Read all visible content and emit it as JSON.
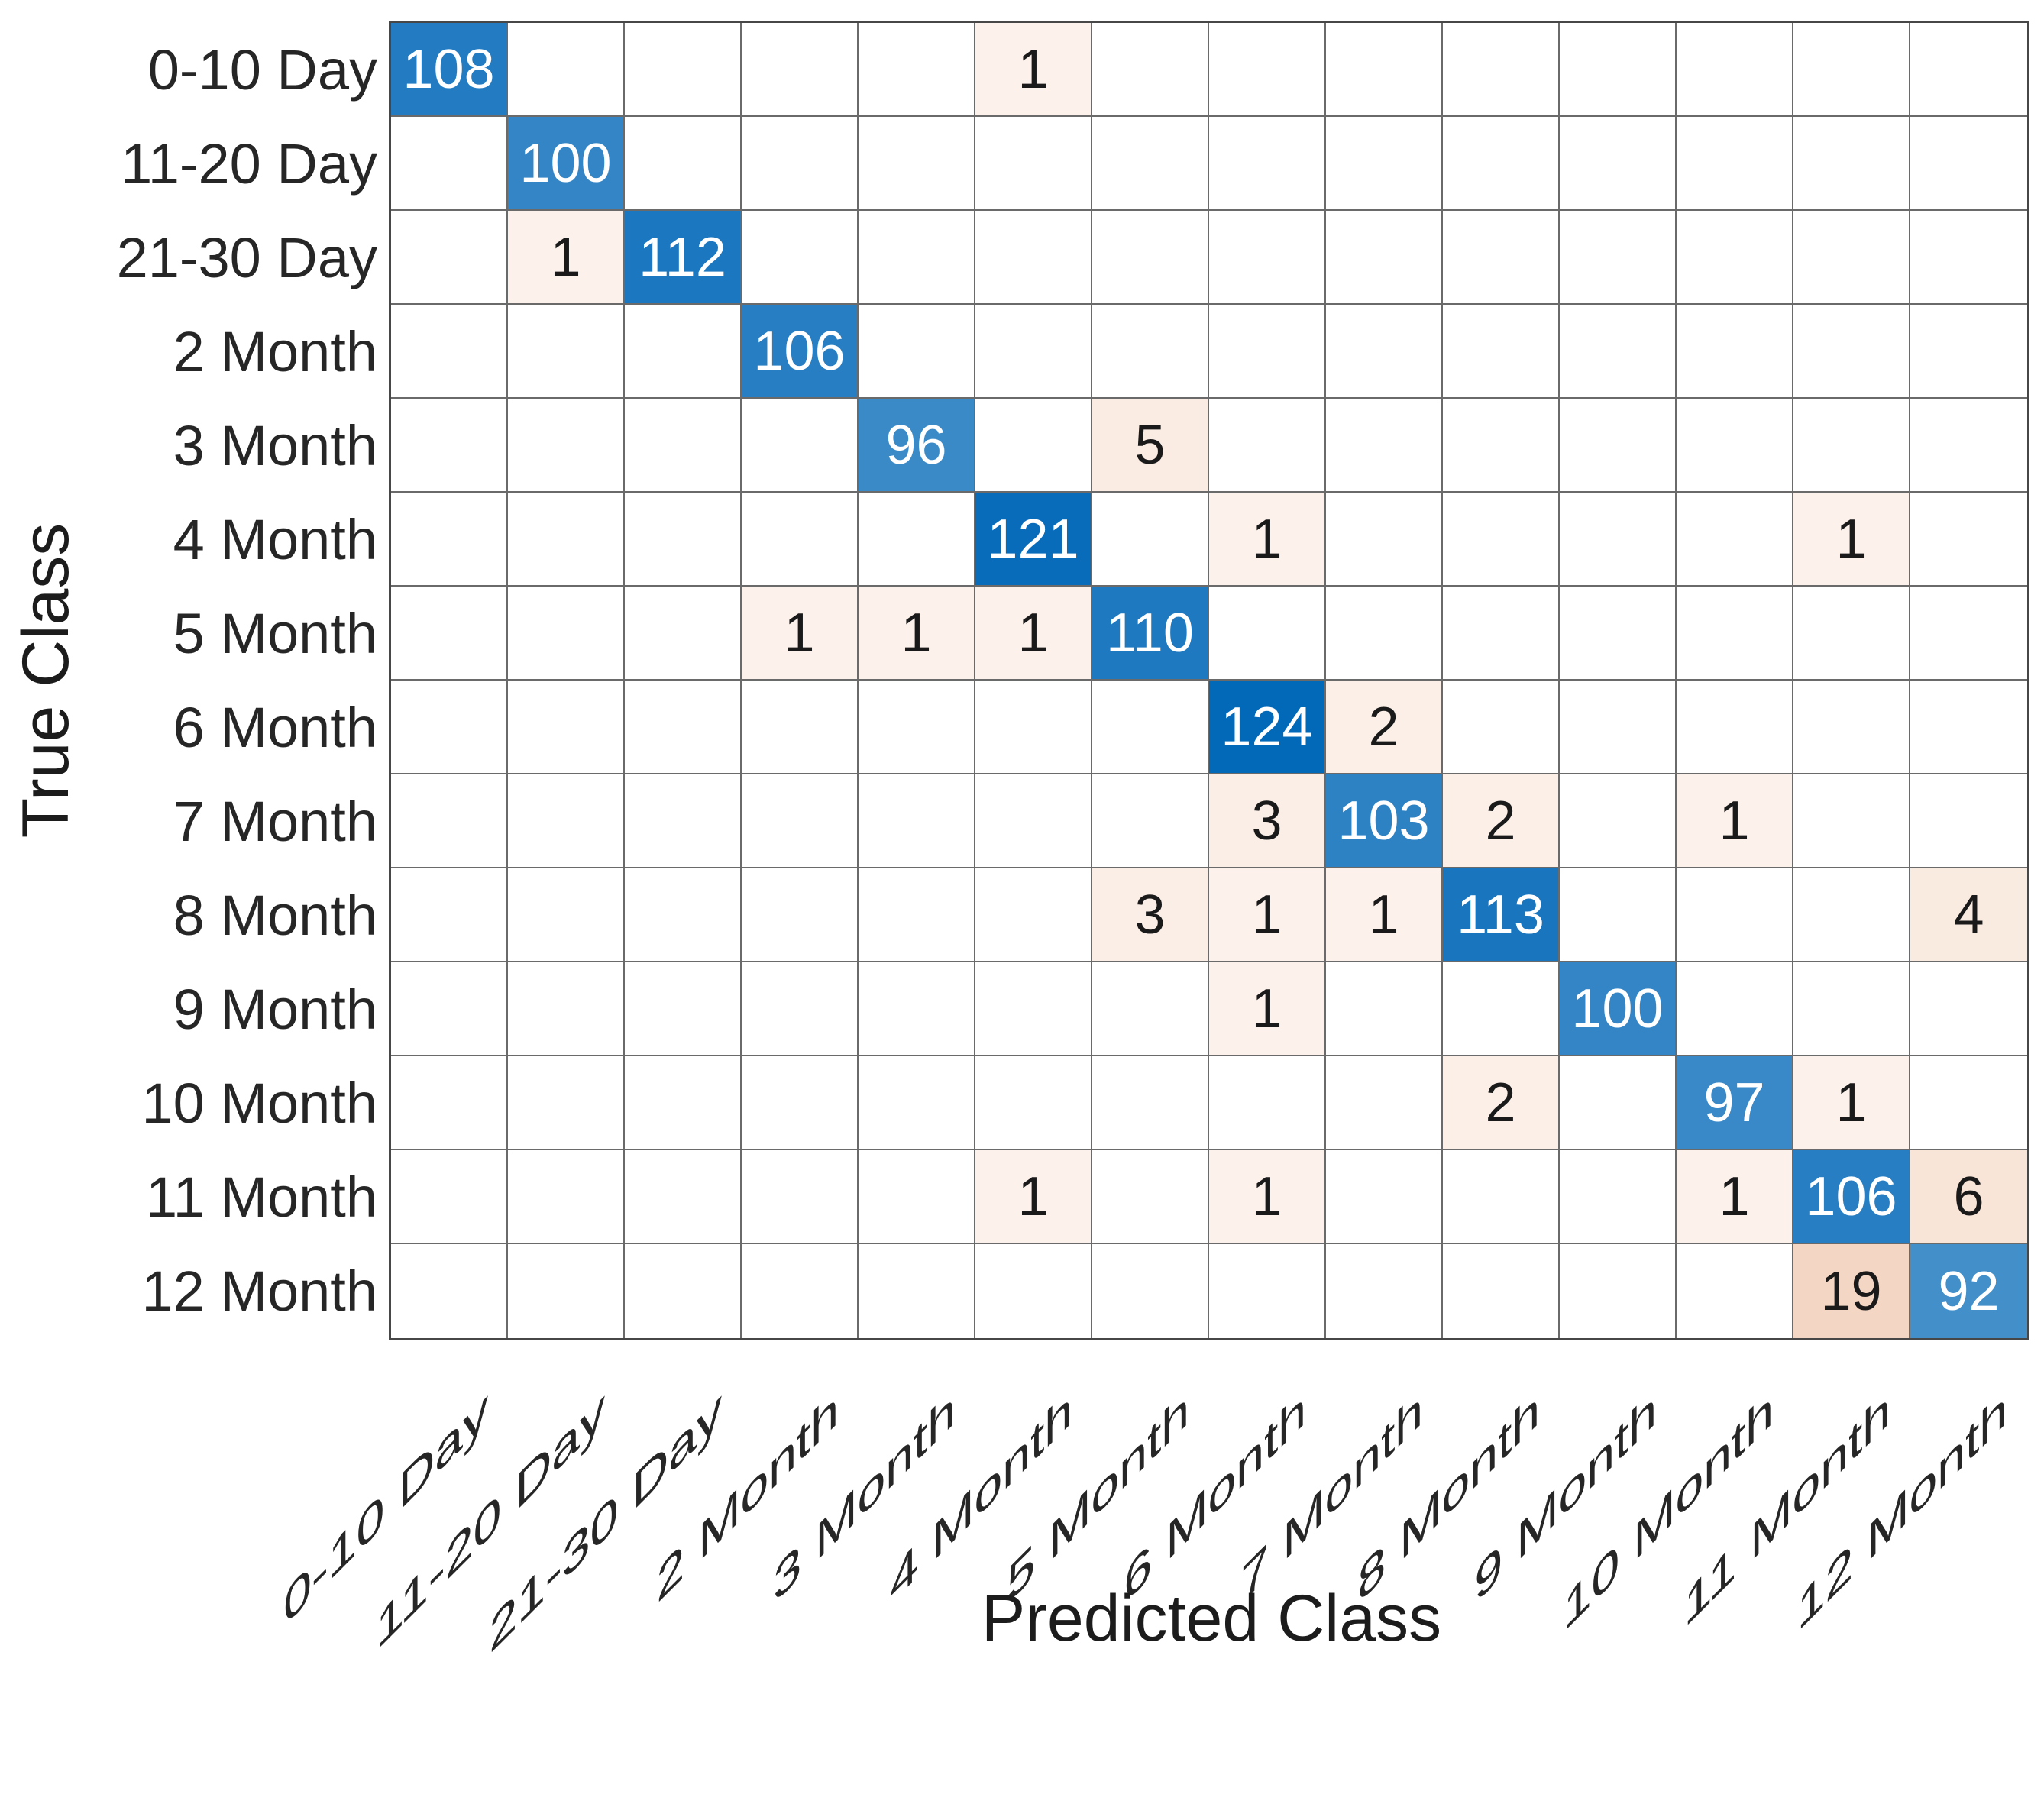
{
  "chart_data": {
    "type": "heatmap",
    "subtype": "confusion-matrix",
    "title": "",
    "xlabel": "Predicted Class",
    "ylabel": "True Class",
    "classes": [
      "0-10 Day",
      "11-20 Day",
      "21-30 Day",
      "2 Month",
      "3 Month",
      "4 Month",
      "5 Month",
      "6 Month",
      "7 Month",
      "8 Month",
      "9 Month",
      "10 Month",
      "11 Month",
      "12 Month"
    ],
    "matrix": [
      [
        108,
        0,
        0,
        0,
        0,
        1,
        0,
        0,
        0,
        0,
        0,
        0,
        0,
        0
      ],
      [
        0,
        100,
        0,
        0,
        0,
        0,
        0,
        0,
        0,
        0,
        0,
        0,
        0,
        0
      ],
      [
        0,
        1,
        112,
        0,
        0,
        0,
        0,
        0,
        0,
        0,
        0,
        0,
        0,
        0
      ],
      [
        0,
        0,
        0,
        106,
        0,
        0,
        0,
        0,
        0,
        0,
        0,
        0,
        0,
        0
      ],
      [
        0,
        0,
        0,
        0,
        96,
        0,
        5,
        0,
        0,
        0,
        0,
        0,
        0,
        0
      ],
      [
        0,
        0,
        0,
        0,
        0,
        121,
        0,
        1,
        0,
        0,
        0,
        0,
        1,
        0
      ],
      [
        0,
        0,
        0,
        1,
        1,
        1,
        110,
        0,
        0,
        0,
        0,
        0,
        0,
        0
      ],
      [
        0,
        0,
        0,
        0,
        0,
        0,
        0,
        124,
        2,
        0,
        0,
        0,
        0,
        0
      ],
      [
        0,
        0,
        0,
        0,
        0,
        0,
        0,
        3,
        103,
        2,
        0,
        1,
        0,
        0
      ],
      [
        0,
        0,
        0,
        0,
        0,
        0,
        3,
        1,
        1,
        113,
        0,
        0,
        0,
        4
      ],
      [
        0,
        0,
        0,
        0,
        0,
        0,
        0,
        1,
        0,
        0,
        100,
        0,
        0,
        0
      ],
      [
        0,
        0,
        0,
        0,
        0,
        0,
        0,
        0,
        0,
        2,
        0,
        97,
        1,
        0
      ],
      [
        0,
        0,
        0,
        0,
        0,
        1,
        0,
        1,
        0,
        0,
        0,
        1,
        106,
        6
      ],
      [
        0,
        0,
        0,
        0,
        0,
        0,
        0,
        0,
        0,
        0,
        0,
        0,
        19,
        92
      ]
    ],
    "max_value": 124,
    "grid_on": true,
    "legend_position": "none",
    "empty_cell_display": "",
    "colors": {
      "background": "#ffffff",
      "grid_line": "#6a6a6a",
      "outer_border": "#474747",
      "tick_text": "#262626",
      "axis_title_text": "#1c1c1c",
      "diagonal_text": "#ffffff",
      "off_diagonal_text": "#1a1a1a",
      "diagonal_base": "#0268b8",
      "off_diagonal_base": "#d95319",
      "diagonal": {
        "92": "#438fca",
        "96": "#3b8ac8",
        "97": "#3989c8",
        "100": "#3385c6",
        "103": "#2d82c4",
        "106": "#277ec2",
        "108": "#237bc1",
        "110": "#1f79c0",
        "112": "#1b77bf",
        "113": "#1975be",
        "121": "#086cba",
        "124": "#0268b8"
      },
      "off_diagonal": {
        "1": "#fcf1eb",
        "2": "#fbefe8",
        "3": "#fbeee6",
        "4": "#faebe1",
        "5": "#faece3",
        "6": "#f8e5d8",
        "19": "#f4d6c5"
      }
    }
  }
}
